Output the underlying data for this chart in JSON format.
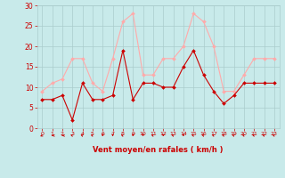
{
  "xlabel": "Vent moyen/en rafales ( km/h )",
  "hours": [
    0,
    1,
    2,
    3,
    4,
    5,
    6,
    7,
    8,
    9,
    10,
    11,
    12,
    13,
    14,
    15,
    16,
    17,
    18,
    19,
    20,
    21,
    22,
    23
  ],
  "vent_moyen": [
    7,
    7,
    8,
    2,
    11,
    7,
    7,
    8,
    19,
    7,
    11,
    11,
    10,
    10,
    15,
    19,
    13,
    9,
    6,
    8,
    11,
    11,
    11,
    11
  ],
  "rafales": [
    9,
    11,
    12,
    17,
    17,
    11,
    9,
    17,
    26,
    28,
    13,
    13,
    17,
    17,
    20,
    28,
    26,
    20,
    9,
    9,
    13,
    17,
    17,
    17
  ],
  "color_moyen": "#cc0000",
  "color_rafales": "#ffaaaa",
  "bg_color": "#c8eaea",
  "grid_color": "#aacccc",
  "ylim": [
    0,
    30
  ],
  "yticks": [
    0,
    5,
    10,
    15,
    20,
    25,
    30
  ],
  "tick_color": "#cc0000",
  "arrow_angles_deg": [
    225,
    180,
    180,
    135,
    135,
    135,
    270,
    270,
    135,
    270,
    270,
    135,
    270,
    135,
    270,
    135,
    135,
    135,
    135,
    135,
    135,
    135,
    135,
    135
  ]
}
